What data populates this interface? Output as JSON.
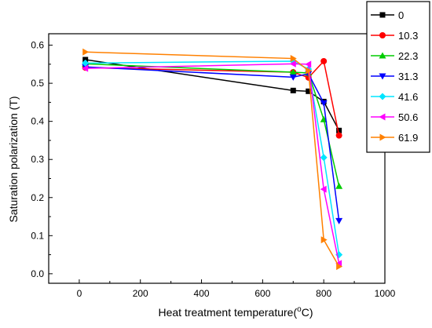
{
  "chart_data": {
    "type": "line",
    "xlabel": "Heat treatment temperature(°C)",
    "xlabel_main": "Heat treatment temperature(",
    "xlabel_unit_sup": "o",
    "xlabel_unit_tail": "C)",
    "ylabel": "Saturation polarization (T)",
    "xlim": [
      -100,
      1000
    ],
    "ylim": [
      -0.025,
      0.63
    ],
    "xticks": [
      0,
      200,
      400,
      600,
      800,
      1000
    ],
    "yticks": [
      0.0,
      0.1,
      0.2,
      0.3,
      0.4,
      0.5,
      0.6
    ],
    "xtick_labels": [
      "0",
      "200",
      "400",
      "600",
      "800",
      "1000"
    ],
    "ytick_labels": [
      "0.0",
      "0.1",
      "0.2",
      "0.3",
      "0.4",
      "0.5",
      "0.6"
    ],
    "legend_position": "top-right",
    "series": [
      {
        "name": "0",
        "color": "#000000",
        "marker": "square",
        "x": [
          20,
          700,
          750,
          800,
          850
        ],
        "y": [
          0.562,
          0.481,
          0.479,
          0.452,
          0.376
        ]
      },
      {
        "name": "10.3",
        "color": "#ff0000",
        "marker": "circle",
        "x": [
          20,
          700,
          750,
          800,
          850
        ],
        "y": [
          0.541,
          0.529,
          0.515,
          0.558,
          0.363
        ]
      },
      {
        "name": "22.3",
        "color": "#00cc00",
        "marker": "triangle-up",
        "x": [
          20,
          700,
          750,
          800,
          850
        ],
        "y": [
          0.551,
          0.529,
          0.527,
          0.405,
          0.23
        ]
      },
      {
        "name": "31.3",
        "color": "#0000ff",
        "marker": "triangle-down",
        "x": [
          20,
          700,
          750,
          800,
          850
        ],
        "y": [
          0.543,
          0.516,
          0.525,
          0.448,
          0.139
        ]
      },
      {
        "name": "41.6",
        "color": "#00e5ff",
        "marker": "diamond",
        "x": [
          20,
          700,
          750,
          800,
          850
        ],
        "y": [
          0.553,
          0.558,
          0.537,
          0.305,
          0.05
        ]
      },
      {
        "name": "50.6",
        "color": "#ff00ff",
        "marker": "triangle-left",
        "x": [
          20,
          700,
          750,
          800,
          850
        ],
        "y": [
          0.539,
          0.551,
          0.55,
          0.222,
          0.027
        ]
      },
      {
        "name": "61.9",
        "color": "#ff8000",
        "marker": "triangle-right",
        "x": [
          20,
          700,
          750,
          800,
          850
        ],
        "y": [
          0.582,
          0.565,
          0.533,
          0.089,
          0.019
        ]
      }
    ]
  }
}
